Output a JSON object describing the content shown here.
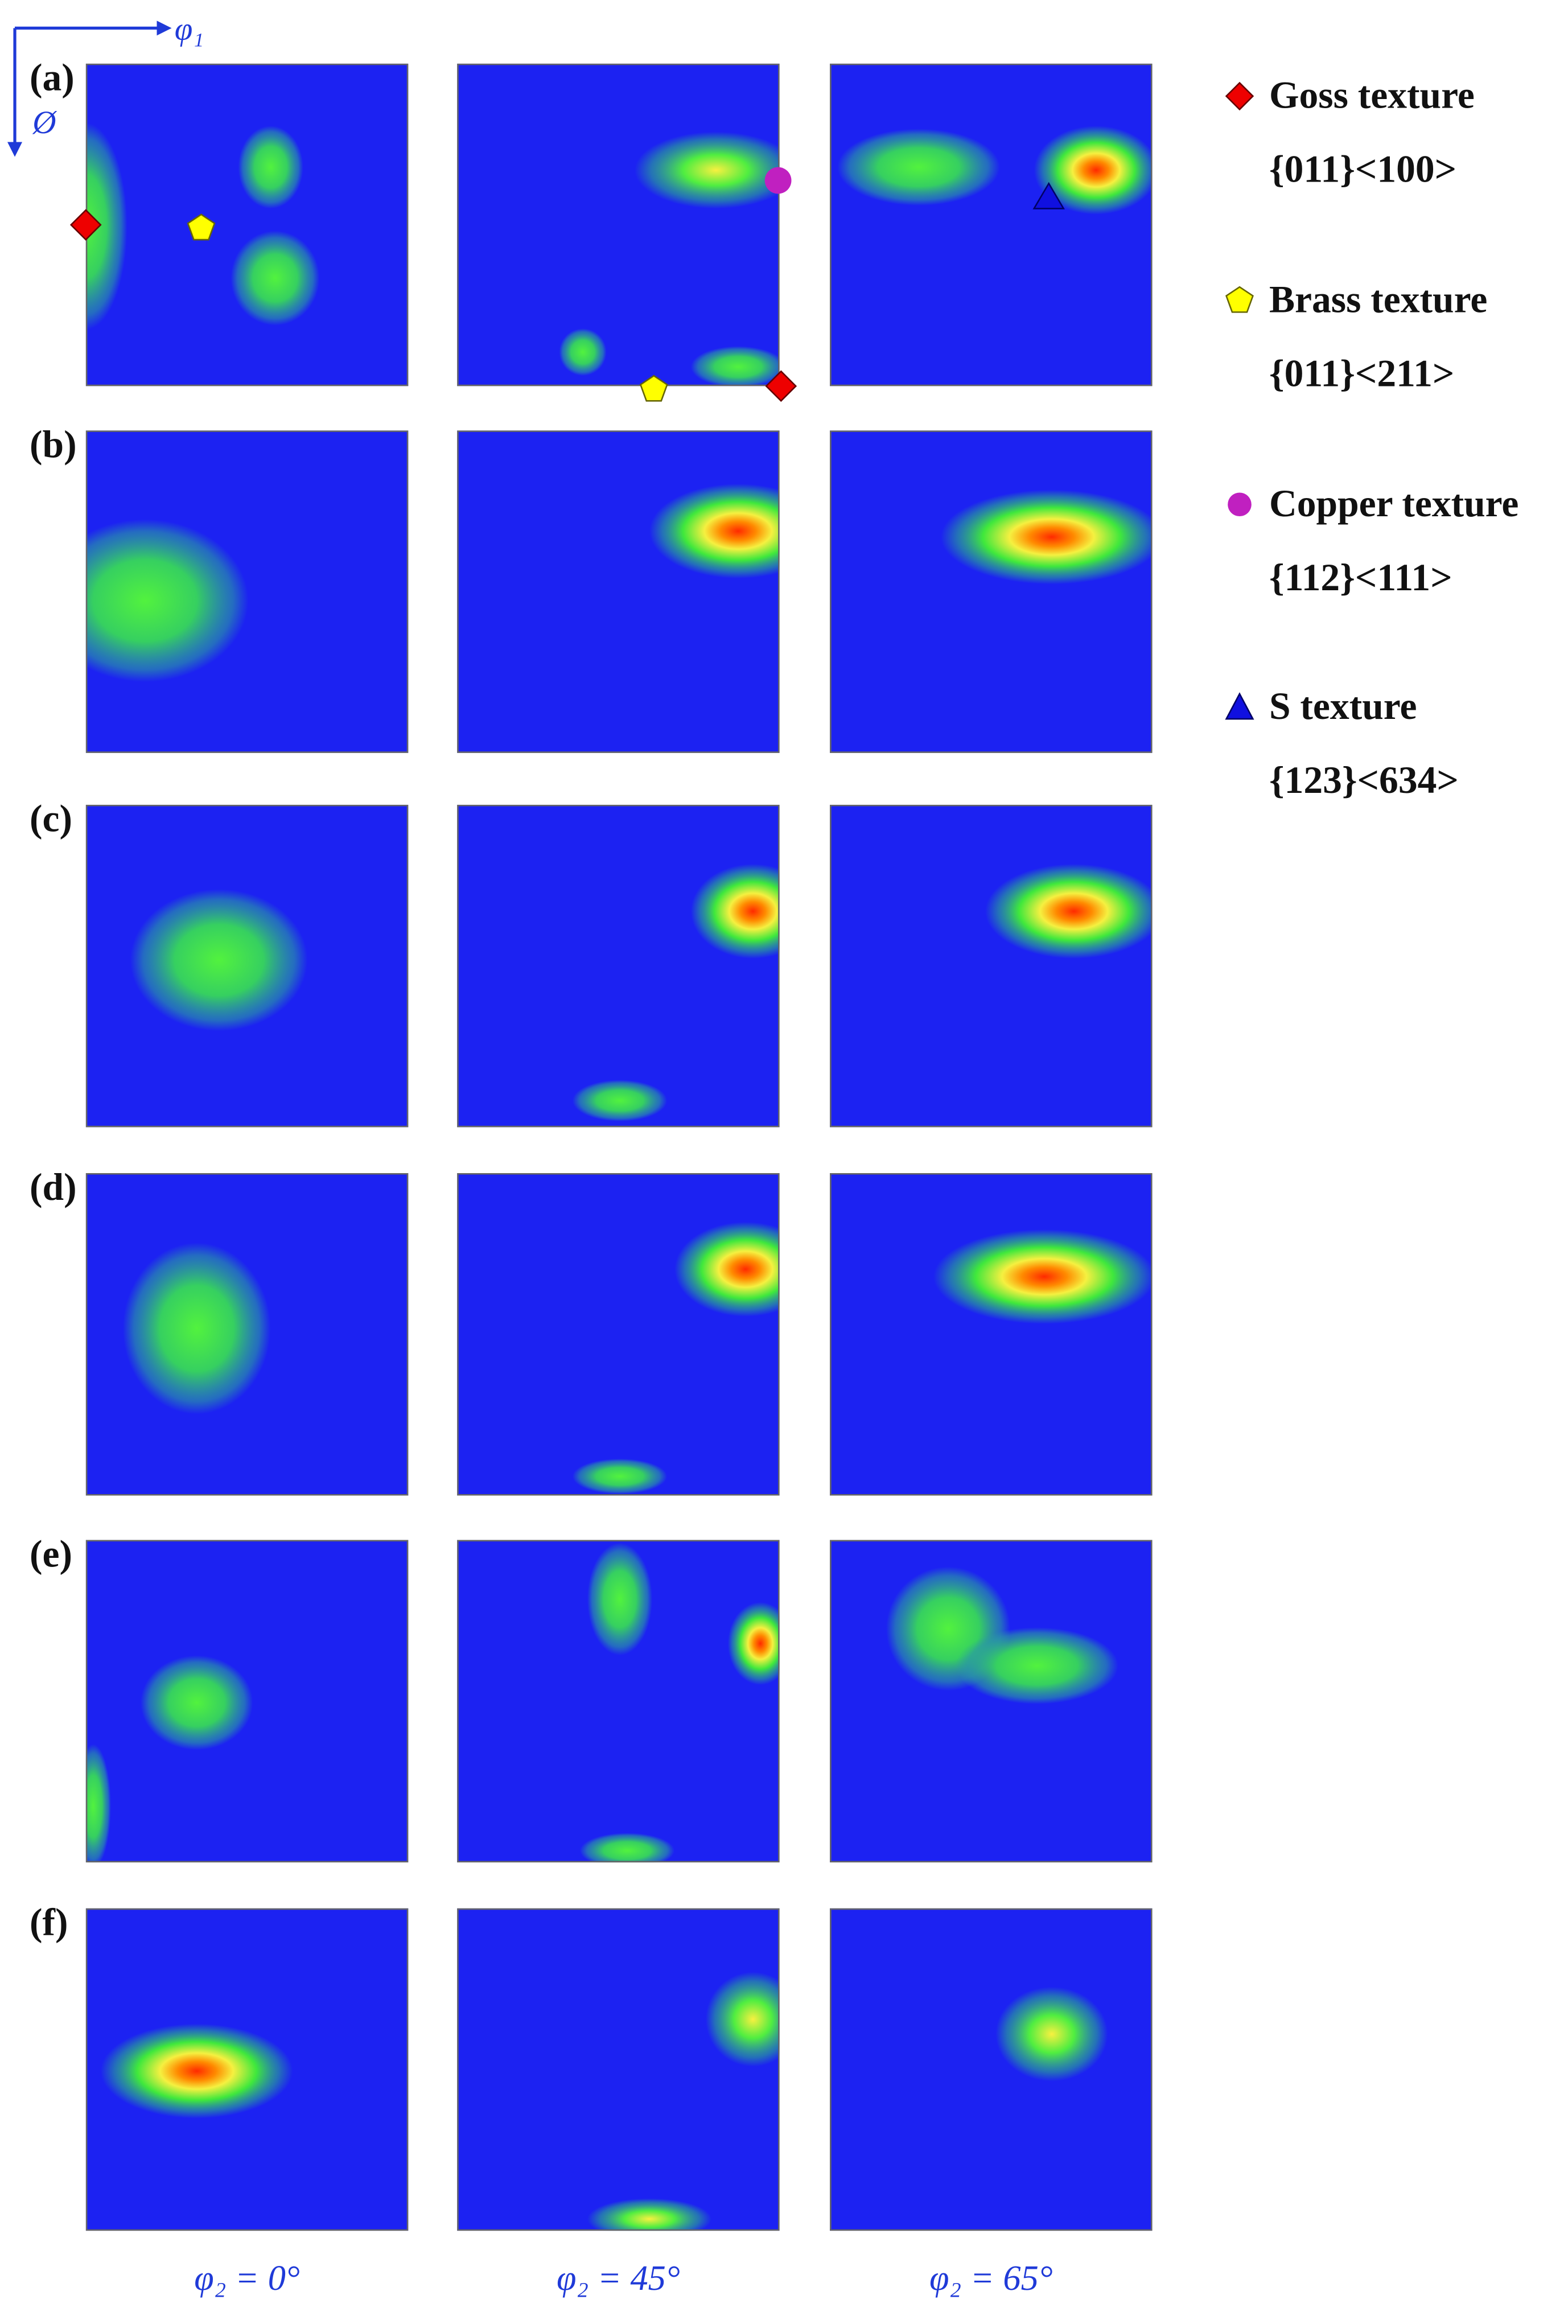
{
  "axes": {
    "x_label": "φ₁",
    "y_label": "Ø"
  },
  "rows": [
    "(a)",
    "(b)",
    "(c)",
    "(d)",
    "(e)",
    "(f)"
  ],
  "columns": [
    "φ₂ = 0°",
    "φ₂ = 45°",
    "φ₂ = 65°"
  ],
  "legend": [
    {
      "name": "Goss texture",
      "index": "{011}<100>"
    },
    {
      "name": "Brass texture",
      "index": "{011}<211>"
    },
    {
      "name": "Copper texture",
      "index": "{112}<111>"
    },
    {
      "name": "S texture",
      "index": "{123}<634>"
    }
  ]
}
